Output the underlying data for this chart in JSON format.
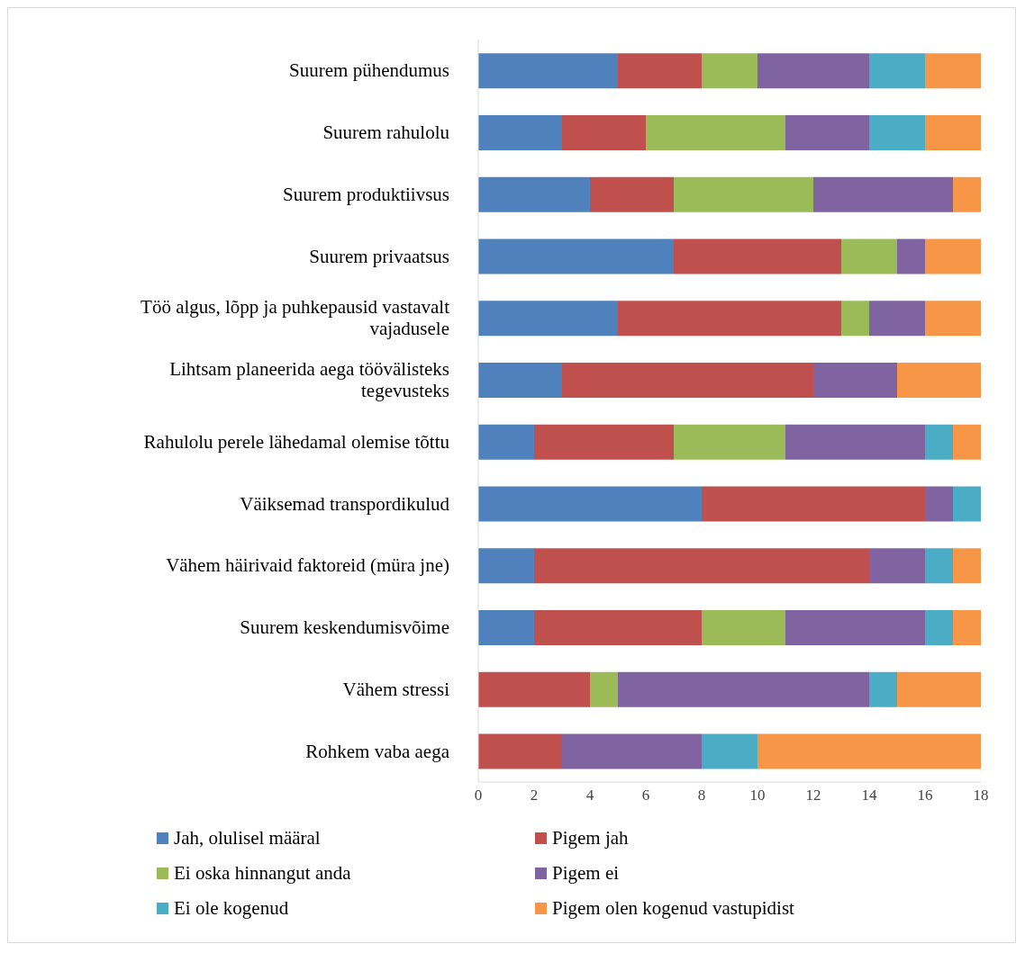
{
  "chart_data": {
    "type": "bar",
    "orientation": "horizontal",
    "stacked": true,
    "categories": [
      "Suurem pühendumus",
      "Suurem rahulolu",
      "Suurem produktiivsus",
      "Suurem privaatsus",
      "Töö algus, lõpp ja puhkepausid vastavalt vajadusele",
      "Lihtsam planeerida aega töövälisteks tegevusteks",
      "Rahulolu perele lähedamal olemise tõttu",
      "Väiksemad transpordikulud",
      "Vähem häirivaid faktoreid (müra jne)",
      "Suurem keskendumisvõime",
      "Vähem stressi",
      "Rohkem vaba aega"
    ],
    "series": [
      {
        "name": "Jah, olulisel määral",
        "color": "#4f81bd",
        "values": [
          5,
          3,
          4,
          7,
          5,
          3,
          2,
          8,
          2,
          2,
          0,
          0
        ]
      },
      {
        "name": "Pigem jah",
        "color": "#c0504d",
        "values": [
          3,
          3,
          3,
          6,
          8,
          9,
          5,
          8,
          12,
          6,
          4,
          3
        ]
      },
      {
        "name": "Ei oska hinnangut anda",
        "color": "#9bbb59",
        "values": [
          2,
          5,
          5,
          2,
          1,
          0,
          4,
          0,
          0,
          3,
          1,
          0
        ]
      },
      {
        "name": "Pigem ei",
        "color": "#8064a2",
        "values": [
          4,
          3,
          5,
          1,
          2,
          3,
          5,
          1,
          2,
          5,
          9,
          5
        ]
      },
      {
        "name": "Ei ole kogenud",
        "color": "#4bacc6",
        "values": [
          2,
          2,
          0,
          0,
          0,
          0,
          1,
          1,
          1,
          1,
          1,
          2
        ]
      },
      {
        "name": "Pigem olen kogenud vastupidist",
        "color": "#f79646",
        "values": [
          2,
          2,
          1,
          2,
          2,
          3,
          1,
          0,
          1,
          1,
          3,
          8
        ]
      }
    ],
    "xlim": [
      0,
      18
    ],
    "xticks": [
      0,
      2,
      4,
      6,
      8,
      10,
      12,
      14,
      16,
      18
    ],
    "grid": false,
    "legend": "bottom"
  }
}
